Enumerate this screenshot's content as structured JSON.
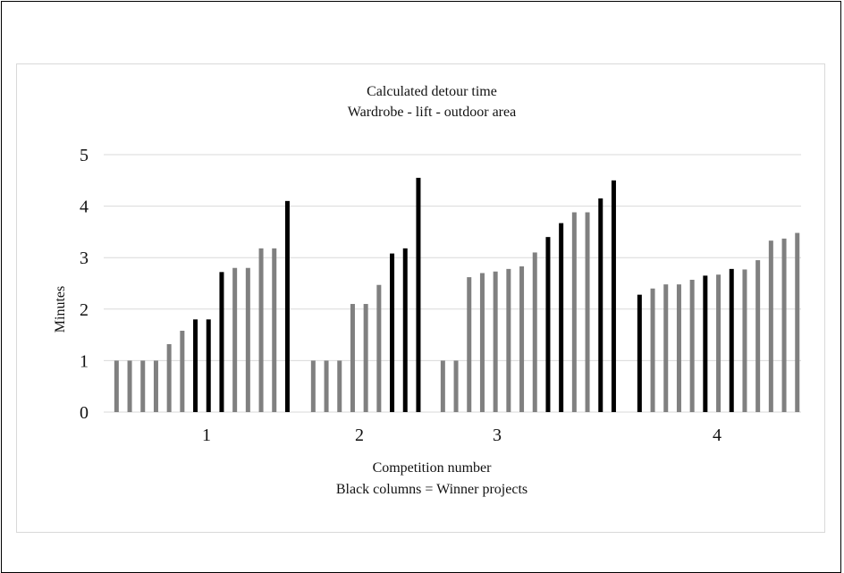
{
  "chart_data": {
    "type": "bar",
    "title": "Calculated detour time",
    "subtitle": "Wardrobe - lift - outdoor area",
    "xlabel": "Competition number",
    "xlabel_note": "Black columns = Winner projects",
    "ylabel": "Minutes",
    "ylim": [
      0,
      5
    ],
    "yticks": [
      "0",
      "1",
      "2",
      "3",
      "4",
      "5"
    ],
    "grid": true,
    "colors": {
      "regular": "#808080",
      "winner": "#000000",
      "grid": "#d9d9d9",
      "border": "#d9d9d9"
    },
    "categories": [
      "1",
      "2",
      "3",
      "4"
    ],
    "groups": [
      {
        "category": "1",
        "values": [
          1.0,
          1.0,
          1.0,
          1.0,
          1.32,
          1.58,
          1.8,
          1.8,
          2.72,
          2.8,
          2.8,
          3.18,
          3.18,
          4.1
        ],
        "winner": [
          false,
          false,
          false,
          false,
          false,
          false,
          true,
          true,
          true,
          false,
          false,
          false,
          false,
          true
        ]
      },
      {
        "category": "2",
        "values": [
          1.0,
          1.0,
          1.0,
          2.1,
          2.1,
          2.47,
          3.08,
          3.18,
          4.55
        ],
        "winner": [
          false,
          false,
          false,
          false,
          false,
          false,
          true,
          true,
          true
        ]
      },
      {
        "category": "3",
        "values": [
          1.0,
          1.0,
          2.62,
          2.7,
          2.73,
          2.78,
          2.83,
          3.1,
          3.4,
          3.67,
          3.88,
          3.88,
          4.15,
          4.5
        ],
        "winner": [
          false,
          false,
          false,
          false,
          false,
          false,
          false,
          false,
          true,
          true,
          false,
          false,
          true,
          true
        ]
      },
      {
        "category": "4",
        "values": [
          2.28,
          2.4,
          2.48,
          2.48,
          2.57,
          2.65,
          2.67,
          2.78,
          2.77,
          2.95,
          3.33,
          3.37,
          3.48
        ],
        "winner": [
          true,
          false,
          false,
          false,
          false,
          true,
          false,
          true,
          false,
          false,
          false,
          false,
          false
        ]
      }
    ]
  }
}
